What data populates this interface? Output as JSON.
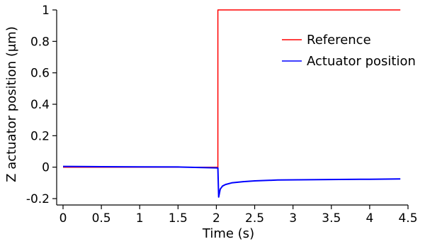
{
  "chart_data": {
    "type": "line",
    "title": "",
    "xlabel": "Time (s)",
    "ylabel": "Z actuator position (μm)",
    "xlim": [
      -0.1,
      4.55
    ],
    "ylim": [
      -0.2,
      1.0
    ],
    "xticks": [
      0,
      0.5,
      1,
      1.5,
      2,
      2.5,
      3,
      3.5,
      4,
      4.5
    ],
    "xtick_labels": [
      "0",
      "0.5",
      "1",
      "1.5",
      "2",
      "2.5",
      "3",
      "3.5",
      "4",
      "4.5"
    ],
    "yticks": [
      -0.2,
      0,
      0.2,
      0.4,
      0.6,
      0.8,
      1
    ],
    "ytick_labels": [
      "-0.2",
      "0",
      "0.2",
      "0.4",
      "0.6",
      "0.8",
      "1"
    ],
    "grid": false,
    "legend_position": "upper-right",
    "series": [
      {
        "name": "Reference",
        "color": "#ff0000",
        "x": [
          0,
          2.02,
          2.02,
          4.4
        ],
        "y": [
          0,
          0,
          1,
          1
        ]
      },
      {
        "name": "Actuator position",
        "color": "#0000ff",
        "x": [
          0,
          0.5,
          1.0,
          1.5,
          2.02,
          2.03,
          2.05,
          2.08,
          2.12,
          2.2,
          2.35,
          2.5,
          2.8,
          3.2,
          3.6,
          4.0,
          4.4
        ],
        "y": [
          0.005,
          0.003,
          0.002,
          0.001,
          -0.005,
          -0.19,
          -0.14,
          -0.12,
          -0.11,
          -0.1,
          -0.092,
          -0.087,
          -0.082,
          -0.08,
          -0.078,
          -0.077,
          -0.075
        ]
      }
    ]
  }
}
